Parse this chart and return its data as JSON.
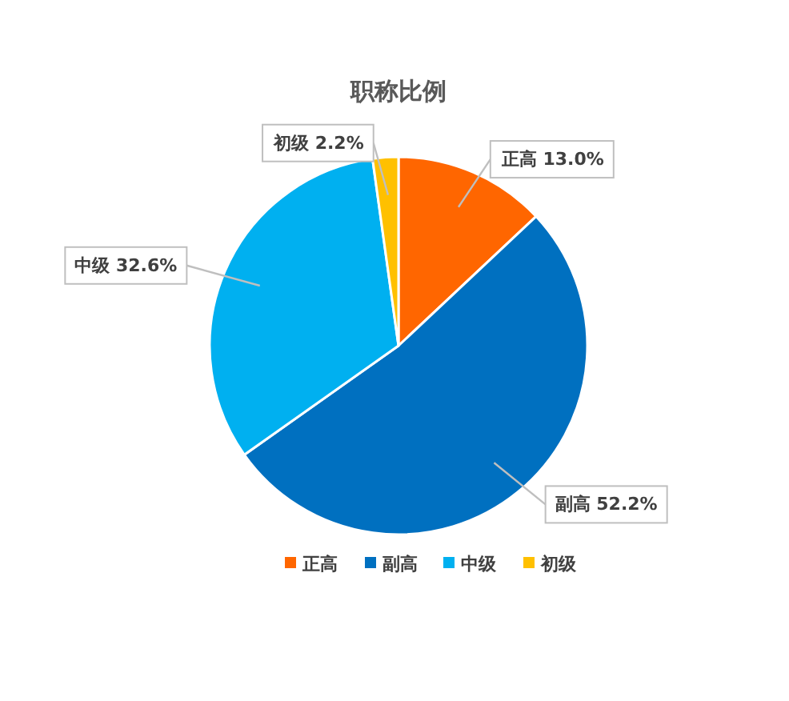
{
  "chart_data": {
    "type": "pie",
    "title": "职称比例",
    "categories": [
      "正高",
      "副高",
      "中级",
      "初级"
    ],
    "values": [
      13.0,
      52.2,
      32.6,
      2.2
    ],
    "colors": [
      "#ff6600",
      "#0070c0",
      "#00b0f0",
      "#ffc000"
    ],
    "value_labels": [
      "正高 13.0%",
      "副高 52.2%",
      "中级 32.6%",
      "初级 2.2%"
    ],
    "legend": "bottom"
  }
}
